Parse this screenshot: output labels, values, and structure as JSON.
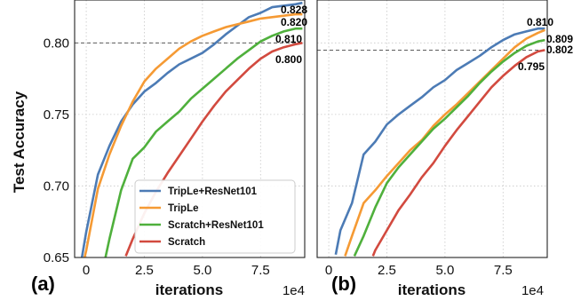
{
  "colors": {
    "TripLe+ResNet101": "#4c7bb5",
    "TripLe": "#f59a34",
    "Scratch+ResNet101": "#4fb03c",
    "Scratch": "#d24a3f",
    "grid": "#c8c8c8",
    "reference_line": "#444444"
  },
  "chart_data": [
    {
      "type": "line",
      "panel_label": "(a)",
      "title": "",
      "xlabel": "iterations",
      "x_scale_note": "1e4",
      "ylabel": "Test Accuracy",
      "xlim": [
        -0.5,
        9.4
      ],
      "ylim": [
        0.65,
        0.83
      ],
      "x_ticks": [
        0,
        2.5,
        5.0,
        7.5
      ],
      "x_tick_labels": [
        "0",
        "2.5",
        "5.0",
        "7.5"
      ],
      "y_ticks": [
        0.65,
        0.7,
        0.75,
        0.8
      ],
      "y_tick_labels": [
        "0.65",
        "0.70",
        "0.75",
        "0.80"
      ],
      "grid": true,
      "reference_line": 0.8,
      "legend_position": "bottom-right",
      "series": [
        {
          "name": "TripLe+ResNet101",
          "x": [
            -0.5,
            0,
            0.5,
            1.0,
            1.5,
            2.0,
            2.5,
            3.0,
            3.5,
            4.0,
            4.5,
            5.0,
            5.5,
            6.0,
            6.5,
            7.0,
            7.5,
            8.0,
            8.5,
            9.0,
            9.3
          ],
          "y": [
            0.62,
            0.668,
            0.708,
            0.728,
            0.745,
            0.757,
            0.766,
            0.772,
            0.779,
            0.785,
            0.789,
            0.793,
            0.799,
            0.806,
            0.812,
            0.818,
            0.821,
            0.825,
            0.826,
            0.827,
            0.828
          ]
        },
        {
          "name": "TripLe",
          "x": [
            -0.5,
            0,
            0.5,
            1.0,
            1.5,
            2.0,
            2.5,
            3.0,
            3.5,
            4.0,
            4.5,
            5.0,
            5.5,
            6.0,
            6.5,
            7.0,
            7.5,
            8.0,
            8.5,
            9.0,
            9.3
          ],
          "y": [
            0.62,
            0.655,
            0.698,
            0.722,
            0.742,
            0.759,
            0.773,
            0.782,
            0.789,
            0.796,
            0.801,
            0.805,
            0.808,
            0.811,
            0.813,
            0.815,
            0.817,
            0.818,
            0.819,
            0.82,
            0.82
          ]
        },
        {
          "name": "Scratch+ResNet101",
          "x": [
            0.8,
            1.0,
            1.5,
            2.0,
            2.5,
            3.0,
            3.5,
            4.0,
            4.5,
            5.0,
            5.5,
            6.0,
            6.5,
            7.0,
            7.5,
            8.0,
            8.5,
            9.0,
            9.3
          ],
          "y": [
            0.648,
            0.663,
            0.697,
            0.719,
            0.727,
            0.738,
            0.745,
            0.752,
            0.761,
            0.768,
            0.775,
            0.782,
            0.789,
            0.795,
            0.801,
            0.805,
            0.808,
            0.81,
            0.81
          ]
        },
        {
          "name": "Scratch",
          "x": [
            1.7,
            2.0,
            2.5,
            3.0,
            3.5,
            4.0,
            4.5,
            5.0,
            5.5,
            6.0,
            6.5,
            7.0,
            7.5,
            8.0,
            8.5,
            9.0,
            9.3
          ],
          "y": [
            0.651,
            0.663,
            0.681,
            0.696,
            0.709,
            0.721,
            0.733,
            0.745,
            0.756,
            0.766,
            0.774,
            0.782,
            0.789,
            0.794,
            0.797,
            0.799,
            0.8
          ]
        }
      ],
      "end_labels": [
        "0.828",
        "0.820",
        "0.810",
        "0.800"
      ]
    },
    {
      "type": "line",
      "panel_label": "(b)",
      "title": "",
      "xlabel": "iterations",
      "x_scale_note": "1e4",
      "ylabel": "",
      "xlim": [
        -0.5,
        9.4
      ],
      "ylim": [
        0.65,
        0.83
      ],
      "x_ticks": [
        0,
        2.5,
        5.0,
        7.5
      ],
      "x_tick_labels": [
        "0",
        "2.5",
        "5.0",
        "7.5"
      ],
      "grid": true,
      "reference_line": 0.795,
      "series": [
        {
          "name": "TripLe+ResNet101",
          "x": [
            0.3,
            0.5,
            1.0,
            1.5,
            2.0,
            2.5,
            3.0,
            3.5,
            4.0,
            4.5,
            5.0,
            5.5,
            6.0,
            6.5,
            7.0,
            7.5,
            8.0,
            8.5,
            9.0,
            9.3
          ],
          "y": [
            0.652,
            0.669,
            0.688,
            0.722,
            0.731,
            0.743,
            0.75,
            0.756,
            0.762,
            0.769,
            0.774,
            0.781,
            0.786,
            0.791,
            0.797,
            0.802,
            0.806,
            0.808,
            0.81,
            0.81
          ]
        },
        {
          "name": "TripLe",
          "x": [
            0.7,
            1.0,
            1.5,
            2.0,
            2.5,
            3.0,
            3.5,
            4.0,
            4.5,
            5.0,
            5.5,
            6.0,
            6.5,
            7.0,
            7.5,
            8.0,
            8.5,
            9.0,
            9.3
          ],
          "y": [
            0.651,
            0.665,
            0.688,
            0.697,
            0.707,
            0.716,
            0.725,
            0.732,
            0.742,
            0.75,
            0.757,
            0.765,
            0.773,
            0.781,
            0.789,
            0.797,
            0.803,
            0.807,
            0.809
          ]
        },
        {
          "name": "Scratch+ResNet101",
          "x": [
            1.1,
            1.5,
            2.0,
            2.5,
            3.0,
            3.5,
            4.0,
            4.5,
            5.0,
            5.5,
            6.0,
            6.5,
            7.0,
            7.5,
            8.0,
            8.5,
            9.0,
            9.3
          ],
          "y": [
            0.651,
            0.665,
            0.685,
            0.702,
            0.713,
            0.722,
            0.731,
            0.74,
            0.747,
            0.755,
            0.763,
            0.772,
            0.78,
            0.787,
            0.793,
            0.798,
            0.801,
            0.802
          ]
        },
        {
          "name": "Scratch",
          "x": [
            1.9,
            2.0,
            2.5,
            3.0,
            3.5,
            4.0,
            4.5,
            5.0,
            5.5,
            6.0,
            6.5,
            7.0,
            7.5,
            8.0,
            8.5,
            9.0,
            9.3
          ],
          "y": [
            0.651,
            0.655,
            0.669,
            0.683,
            0.694,
            0.706,
            0.716,
            0.728,
            0.739,
            0.749,
            0.759,
            0.769,
            0.777,
            0.784,
            0.79,
            0.794,
            0.795
          ]
        }
      ],
      "end_labels": [
        "0.810",
        "0.809",
        "0.802",
        "0.795"
      ]
    }
  ]
}
